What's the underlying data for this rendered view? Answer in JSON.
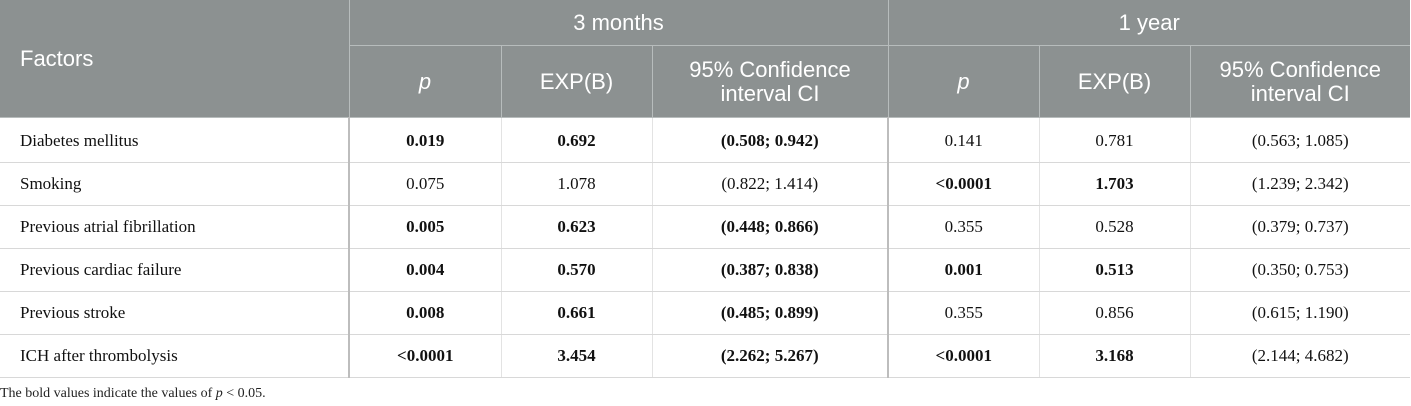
{
  "header": {
    "factors": "Factors",
    "group_3m": "3 months",
    "group_1y": "1 year",
    "p": "p",
    "expb": "EXP(B)",
    "ci": "95% Confidence interval CI"
  },
  "rows": [
    {
      "label": "Diabetes mellitus",
      "m3": {
        "p": "0.019",
        "exp": "0.692",
        "ci": "(0.508; 0.942)"
      },
      "y1": {
        "p": "0.141",
        "exp": "0.781",
        "ci": "(0.563; 1.085)"
      }
    },
    {
      "label": "Smoking",
      "m3": {
        "p": "0.075",
        "exp": "1.078",
        "ci": "(0.822; 1.414)"
      },
      "y1": {
        "p": "<0.0001",
        "exp": "1.703",
        "ci": "(1.239; 2.342)"
      }
    },
    {
      "label": "Previous atrial fibrillation",
      "m3": {
        "p": "0.005",
        "exp": "0.623",
        "ci": "(0.448; 0.866)"
      },
      "y1": {
        "p": "0.355",
        "exp": "0.528",
        "ci": "(0.379; 0.737)"
      }
    },
    {
      "label": "Previous cardiac failure",
      "m3": {
        "p": "0.004",
        "exp": "0.570",
        "ci": "(0.387; 0.838)"
      },
      "y1": {
        "p": "0.001",
        "exp": "0.513",
        "ci": "(0.350; 0.753)"
      }
    },
    {
      "label": "Previous stroke",
      "m3": {
        "p": "0.008",
        "exp": "0.661",
        "ci": "(0.485; 0.899)"
      },
      "y1": {
        "p": "0.355",
        "exp": "0.856",
        "ci": "(0.615; 1.190)"
      }
    },
    {
      "label": "ICH after thrombolysis",
      "m3": {
        "p": "<0.0001",
        "exp": "3.454",
        "ci": "(2.262; 5.267)"
      },
      "y1": {
        "p": "<0.0001",
        "exp": "3.168",
        "ci": "(2.144; 4.682)"
      }
    }
  ],
  "footnote": {
    "prefix": "The bold values indicate the values of ",
    "var": "p",
    "suffix": " < 0.05."
  }
}
